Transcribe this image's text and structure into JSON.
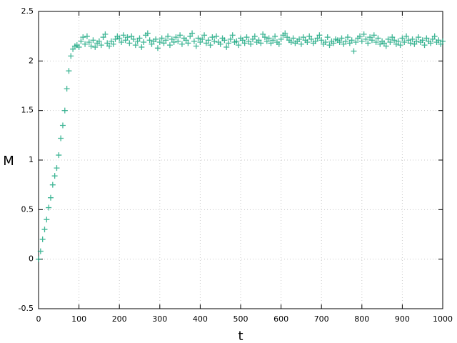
{
  "chart_data": {
    "type": "scatter",
    "xlabel": "t",
    "ylabel": "M",
    "xlim": [
      0,
      1000
    ],
    "ylim": [
      -0.5,
      2.5
    ],
    "xticks": [
      0,
      100,
      200,
      300,
      400,
      500,
      600,
      700,
      800,
      900,
      1000
    ],
    "yticks": [
      -0.5,
      0,
      0.5,
      1,
      1.5,
      2,
      2.5
    ],
    "grid": true,
    "marker": "+",
    "series": [
      {
        "color": "#009e73",
        "x": [
          0,
          5,
          10,
          15,
          20,
          25,
          30,
          35,
          40,
          45,
          50,
          55,
          60,
          65,
          70,
          75,
          80,
          85,
          90,
          95,
          100,
          105,
          110,
          115,
          120,
          125,
          130,
          135,
          140,
          145,
          150,
          155,
          160,
          165,
          170,
          175,
          180,
          185,
          190,
          195,
          200,
          205,
          210,
          215,
          220,
          225,
          230,
          235,
          240,
          245,
          250,
          255,
          260,
          265,
          270,
          275,
          280,
          285,
          290,
          295,
          300,
          305,
          310,
          315,
          320,
          325,
          330,
          335,
          340,
          345,
          350,
          355,
          360,
          365,
          370,
          375,
          380,
          385,
          390,
          395,
          400,
          405,
          410,
          415,
          420,
          425,
          430,
          435,
          440,
          445,
          450,
          455,
          460,
          465,
          470,
          475,
          480,
          485,
          490,
          495,
          500,
          505,
          510,
          515,
          520,
          525,
          530,
          535,
          540,
          545,
          550,
          555,
          560,
          565,
          570,
          575,
          580,
          585,
          590,
          595,
          600,
          605,
          610,
          615,
          620,
          625,
          630,
          635,
          640,
          645,
          650,
          655,
          660,
          665,
          670,
          675,
          680,
          685,
          690,
          695,
          700,
          705,
          710,
          715,
          720,
          725,
          730,
          735,
          740,
          745,
          750,
          755,
          760,
          765,
          770,
          775,
          780,
          785,
          790,
          795,
          800,
          805,
          810,
          815,
          820,
          825,
          830,
          835,
          840,
          845,
          850,
          855,
          860,
          865,
          870,
          875,
          880,
          885,
          890,
          895,
          900,
          905,
          910,
          915,
          920,
          925,
          930,
          935,
          940,
          945,
          950,
          955,
          960,
          965,
          970,
          975,
          980,
          985,
          990,
          995,
          1000
        ],
        "values": [
          0,
          0.08,
          0.2,
          0.3,
          0.4,
          0.52,
          0.62,
          0.75,
          0.84,
          0.92,
          1.05,
          1.22,
          1.35,
          1.5,
          1.72,
          1.9,
          2.05,
          2.12,
          2.15,
          2.16,
          2.14,
          2.2,
          2.24,
          2.17,
          2.25,
          2.19,
          2.15,
          2.21,
          2.14,
          2.18,
          2.2,
          2.16,
          2.24,
          2.27,
          2.18,
          2.15,
          2.2,
          2.17,
          2.22,
          2.25,
          2.23,
          2.19,
          2.26,
          2.21,
          2.24,
          2.18,
          2.25,
          2.22,
          2.16,
          2.2,
          2.23,
          2.14,
          2.19,
          2.26,
          2.28,
          2.21,
          2.17,
          2.2,
          2.22,
          2.13,
          2.19,
          2.23,
          2.18,
          2.21,
          2.25,
          2.16,
          2.22,
          2.19,
          2.24,
          2.2,
          2.26,
          2.17,
          2.23,
          2.21,
          2.18,
          2.25,
          2.28,
          2.2,
          2.15,
          2.23,
          2.19,
          2.22,
          2.26,
          2.18,
          2.21,
          2.16,
          2.24,
          2.2,
          2.25,
          2.19,
          2.17,
          2.23,
          2.21,
          2.14,
          2.18,
          2.22,
          2.26,
          2.19,
          2.2,
          2.16,
          2.23,
          2.21,
          2.18,
          2.24,
          2.2,
          2.17,
          2.22,
          2.25,
          2.19,
          2.21,
          2.18,
          2.27,
          2.24,
          2.2,
          2.23,
          2.18,
          2.21,
          2.25,
          2.19,
          2.17,
          2.22,
          2.26,
          2.28,
          2.24,
          2.21,
          2.19,
          2.23,
          2.18,
          2.2,
          2.22,
          2.17,
          2.24,
          2.21,
          2.19,
          2.25,
          2.22,
          2.18,
          2.2,
          2.23,
          2.26,
          2.21,
          2.17,
          2.19,
          2.24,
          2.16,
          2.2,
          2.18,
          2.22,
          2.21,
          2.19,
          2.23,
          2.17,
          2.2,
          2.24,
          2.18,
          2.21,
          2.1,
          2.19,
          2.23,
          2.25,
          2.2,
          2.27,
          2.22,
          2.18,
          2.24,
          2.21,
          2.26,
          2.19,
          2.23,
          2.17,
          2.2,
          2.18,
          2.15,
          2.22,
          2.19,
          2.24,
          2.21,
          2.17,
          2.2,
          2.16,
          2.23,
          2.19,
          2.25,
          2.21,
          2.18,
          2.22,
          2.17,
          2.2,
          2.24,
          2.19,
          2.21,
          2.16,
          2.23,
          2.2,
          2.18,
          2.22,
          2.25,
          2.19,
          2.21,
          2.17,
          2.2
        ]
      }
    ]
  }
}
